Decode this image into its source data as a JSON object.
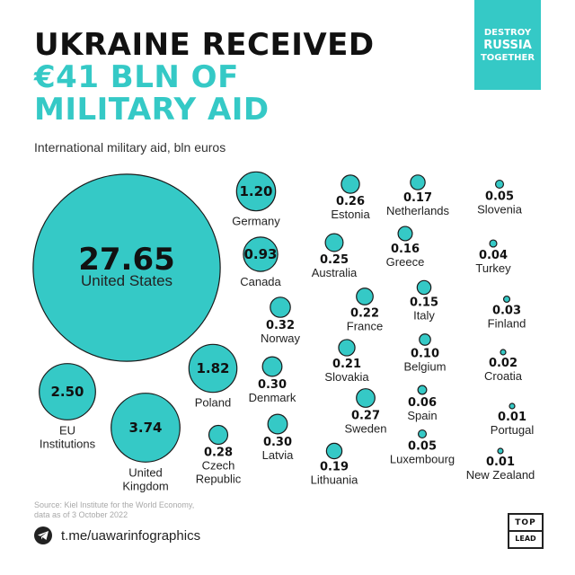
{
  "header": {
    "title_line1": "UKRAINE RECEIVED",
    "title_line2": "€41 BLN OF",
    "title_line3": "MILITARY AID",
    "subtitle": "International military aid, bln euros"
  },
  "badge": {
    "line1": "DESTROY",
    "line2": "RUSSIA",
    "line3": "TOGETHER"
  },
  "footer": {
    "source_line1": "Source: Kiel Institute for the World Economy,",
    "source_line2": "data as of 3 October 2022",
    "telegram": "t.me/uawarinfographics",
    "logo_top": "TOP",
    "logo_bottom": "LEAD"
  },
  "colors": {
    "accent": "#35c9c6",
    "text": "#111111",
    "source": "#a8a8a8"
  },
  "chart_data": {
    "type": "bubble",
    "title": "UKRAINE RECEIVED €41 BLN OF MILITARY AID",
    "subtitle": "International military aid, bln euros",
    "unit": "bln euros",
    "categories": [
      "United States",
      "EU Institutions",
      "United Kingdom",
      "Poland",
      "Germany",
      "Canada",
      "Norway",
      "Denmark",
      "Czech Republic",
      "Latvia",
      "Estonia",
      "Australia",
      "France",
      "Slovakia",
      "Sweden",
      "Lithuania",
      "Netherlands",
      "Greece",
      "Italy",
      "Belgium",
      "Spain",
      "Luxembourg",
      "Slovenia",
      "Turkey",
      "Finland",
      "Croatia",
      "Portugal",
      "New Zealand"
    ],
    "labels": [
      "United States",
      "EU Institutions",
      "United Kingdom",
      "Poland",
      "Germany",
      "Canada",
      "Norway",
      "Denmark",
      "Czech Republic",
      "Latvia",
      "Estonia",
      "Australia",
      "France",
      "Slovakia",
      "Sweden",
      "Lithuania",
      "Netherlands",
      "Greece",
      "Italy",
      "Belgium",
      "Spain",
      "Luxembourg",
      "Slovenia",
      "Turkey",
      "Finland",
      "Croatia",
      "Portugal",
      "New Zealand"
    ],
    "values": [
      27.65,
      2.5,
      3.74,
      1.82,
      1.2,
      0.93,
      0.32,
      0.3,
      0.28,
      0.3,
      0.26,
      0.25,
      0.22,
      0.21,
      0.27,
      0.19,
      0.17,
      0.16,
      0.15,
      0.1,
      0.06,
      0.05,
      0.05,
      0.04,
      0.03,
      0.02,
      0.01,
      0.01
    ],
    "value_labels": [
      "27.65",
      "2.50",
      "3.74",
      "1.82",
      "1.20",
      "0.93",
      "0.32",
      "0.30",
      "0.28",
      "0.30",
      "0.26",
      "0.25",
      "0.22",
      "0.21",
      "0.27",
      "0.19",
      "0.17",
      "0.16",
      "0.15",
      "0.10",
      "0.06",
      "0.05",
      "0.05",
      "0.04",
      "0.03",
      "0.02",
      "0.01",
      "0.01"
    ]
  }
}
